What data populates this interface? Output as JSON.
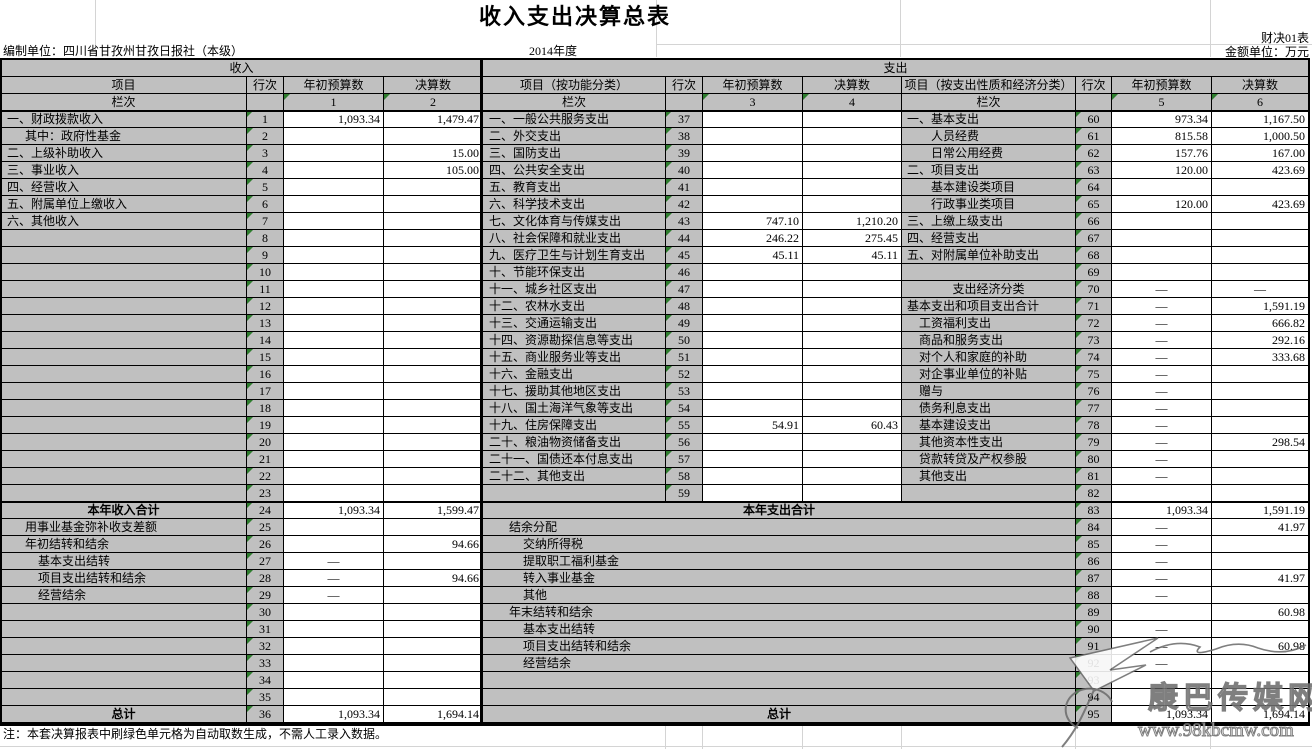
{
  "page": {
    "title": "收入支出决算总表",
    "form_code": "财决01表",
    "unit_note": "金额单位：万元",
    "prepared_by": "编制单位：四川省甘孜州甘孜日报社（本级）",
    "fiscal_year": "2014年度",
    "footnote": "注：本套决算报表中刷绿色单元格为自动取数生成，不需人工录入数据。"
  },
  "colors": {
    "header_bg": "#c0c0c0",
    "cell_bg": "#ffffff",
    "grid_line": "#000000",
    "autofill_triangle": "#2e7d2e"
  },
  "labels": {
    "income_band": "收入",
    "expense_band": "支出",
    "item": "项目",
    "row_no": "行次",
    "budget": "年初预算数",
    "final": "决算数",
    "lanci": "栏次",
    "func_item": "项目（按功能分类）",
    "econ_item": "项目（按支出性质和经济分类）"
  },
  "col_nums": {
    "income": [
      "1",
      "2"
    ],
    "func": [
      "3",
      "4"
    ],
    "econ": [
      "5",
      "6"
    ]
  },
  "income_rows": [
    {
      "n": "1",
      "l": "一、财政拨款收入",
      "i": 0,
      "b": "1,093.34",
      "f": "1,479.47"
    },
    {
      "n": "2",
      "l": "其中：政府性基金",
      "i": 1
    },
    {
      "n": "3",
      "l": "二、上级补助收入",
      "i": 0,
      "f": "15.00"
    },
    {
      "n": "4",
      "l": "三、事业收入",
      "i": 0,
      "f": "105.00"
    },
    {
      "n": "5",
      "l": "四、经营收入",
      "i": 0
    },
    {
      "n": "6",
      "l": "五、附属单位上缴收入",
      "i": 0
    },
    {
      "n": "7",
      "l": "六、其他收入",
      "i": 0
    },
    {
      "n": "8"
    },
    {
      "n": "9"
    },
    {
      "n": "10"
    },
    {
      "n": "11"
    },
    {
      "n": "12"
    },
    {
      "n": "13"
    },
    {
      "n": "14"
    },
    {
      "n": "15"
    },
    {
      "n": "16"
    },
    {
      "n": "17"
    },
    {
      "n": "18"
    },
    {
      "n": "19"
    },
    {
      "n": "20"
    },
    {
      "n": "21"
    },
    {
      "n": "22"
    },
    {
      "n": "23"
    },
    {
      "n": "24",
      "l": "本年收入合计",
      "s": "total",
      "b": "1,093.34",
      "f": "1,599.47"
    },
    {
      "n": "25",
      "l": "用事业基金弥补收支差额",
      "i": 1
    },
    {
      "n": "26",
      "l": "年初结转和结余",
      "i": 1,
      "f": "94.66"
    },
    {
      "n": "27",
      "l": "基本支出结转",
      "i": 2,
      "b": "—"
    },
    {
      "n": "28",
      "l": "项目支出结转和结余",
      "i": 2,
      "b": "—",
      "f": "94.66"
    },
    {
      "n": "29",
      "l": "经营结余",
      "i": 2,
      "b": "—"
    },
    {
      "n": "30"
    },
    {
      "n": "31"
    },
    {
      "n": "32"
    },
    {
      "n": "33"
    },
    {
      "n": "34"
    },
    {
      "n": "35"
    },
    {
      "n": "36",
      "l": "总计",
      "s": "total",
      "b": "1,093.34",
      "f": "1,694.14"
    }
  ],
  "func_rows": [
    {
      "n": "37",
      "l": "一、一般公共服务支出"
    },
    {
      "n": "38",
      "l": "二、外交支出"
    },
    {
      "n": "39",
      "l": "三、国防支出"
    },
    {
      "n": "40",
      "l": "四、公共安全支出"
    },
    {
      "n": "41",
      "l": "五、教育支出"
    },
    {
      "n": "42",
      "l": "六、科学技术支出"
    },
    {
      "n": "43",
      "l": "七、文化体育与传媒支出",
      "b": "747.10",
      "f": "1,210.20"
    },
    {
      "n": "44",
      "l": "八、社会保障和就业支出",
      "b": "246.22",
      "f": "275.45"
    },
    {
      "n": "45",
      "l": "九、医疗卫生与计划生育支出",
      "b": "45.11",
      "f": "45.11"
    },
    {
      "n": "46",
      "l": "十、节能环保支出"
    },
    {
      "n": "47",
      "l": "十一、城乡社区支出"
    },
    {
      "n": "48",
      "l": "十二、农林水支出"
    },
    {
      "n": "49",
      "l": "十三、交通运输支出"
    },
    {
      "n": "50",
      "l": "十四、资源勘探信息等支出"
    },
    {
      "n": "51",
      "l": "十五、商业服务业等支出"
    },
    {
      "n": "52",
      "l": "十六、金融支出"
    },
    {
      "n": "53",
      "l": "十七、援助其他地区支出"
    },
    {
      "n": "54",
      "l": "十八、国土海洋气象等支出"
    },
    {
      "n": "55",
      "l": "十九、住房保障支出",
      "b": "54.91",
      "f": "60.43"
    },
    {
      "n": "56",
      "l": "二十、粮油物资储备支出"
    },
    {
      "n": "57",
      "l": "二十一、国债还本付息支出"
    },
    {
      "n": "58",
      "l": "二十二、其他支出"
    },
    {
      "n": "59"
    }
  ],
  "bottom_rows": [
    {
      "l": "本年支出合计",
      "s": "total"
    },
    {
      "l": "结余分配",
      "i": 1
    },
    {
      "l": "交纳所得税",
      "i": 2
    },
    {
      "l": "提取职工福利基金",
      "i": 2
    },
    {
      "l": "转入事业基金",
      "i": 2
    },
    {
      "l": "其他",
      "i": 2
    },
    {
      "l": "年末结转和结余",
      "i": 1
    },
    {
      "l": "基本支出结转",
      "i": 2
    },
    {
      "l": "项目支出结转和结余",
      "i": 2
    },
    {
      "l": "经营结余",
      "i": 2
    },
    {
      "l": ""
    },
    {
      "l": ""
    },
    {
      "l": "总计",
      "s": "total"
    }
  ],
  "econ_rows": [
    {
      "n": "60",
      "l": "一、基本支出",
      "i": 0,
      "b": "973.34",
      "f": "1,167.50"
    },
    {
      "n": "61",
      "l": "人员经费",
      "i": 2,
      "b": "815.58",
      "f": "1,000.50"
    },
    {
      "n": "62",
      "l": "日常公用经费",
      "i": 2,
      "b": "157.76",
      "f": "167.00"
    },
    {
      "n": "63",
      "l": "二、项目支出",
      "i": 0,
      "b": "120.00",
      "f": "423.69"
    },
    {
      "n": "64",
      "l": "基本建设类项目",
      "i": 2
    },
    {
      "n": "65",
      "l": "行政事业类项目",
      "i": 2,
      "b": "120.00",
      "f": "423.69"
    },
    {
      "n": "66",
      "l": "三、上缴上级支出",
      "i": 0
    },
    {
      "n": "67",
      "l": "四、经营支出",
      "i": 0
    },
    {
      "n": "68",
      "l": "五、对附属单位补助支出",
      "i": 0
    },
    {
      "n": "69"
    },
    {
      "n": "70",
      "l": "支出经济分类",
      "s": "center",
      "b": "—",
      "f": "—"
    },
    {
      "n": "71",
      "l": "基本支出和项目支出合计",
      "i": 0,
      "b": "—",
      "f": "1,591.19"
    },
    {
      "n": "72",
      "l": "工资福利支出",
      "i": 1,
      "b": "—",
      "f": "666.82"
    },
    {
      "n": "73",
      "l": "商品和服务支出",
      "i": 1,
      "b": "—",
      "f": "292.16"
    },
    {
      "n": "74",
      "l": "对个人和家庭的补助",
      "i": 1,
      "b": "—",
      "f": "333.68"
    },
    {
      "n": "75",
      "l": "对企事业单位的补贴",
      "i": 1,
      "b": "—"
    },
    {
      "n": "76",
      "l": "赠与",
      "i": 1,
      "b": "—"
    },
    {
      "n": "77",
      "l": "债务利息支出",
      "i": 1,
      "b": "—"
    },
    {
      "n": "78",
      "l": "基本建设支出",
      "i": 1,
      "b": "—"
    },
    {
      "n": "79",
      "l": "其他资本性支出",
      "i": 1,
      "b": "—",
      "f": "298.54"
    },
    {
      "n": "80",
      "l": "贷款转贷及产权参股",
      "i": 1,
      "b": "—"
    },
    {
      "n": "81",
      "l": "其他支出",
      "i": 1,
      "b": "—"
    },
    {
      "n": "82"
    },
    {
      "n": "83",
      "m": 1,
      "b": "1,093.34",
      "f": "1,591.19"
    },
    {
      "n": "84",
      "m": 1,
      "b": "—",
      "f": "41.97"
    },
    {
      "n": "85",
      "m": 1,
      "b": "—"
    },
    {
      "n": "86",
      "m": 1,
      "b": "—"
    },
    {
      "n": "87",
      "m": 1,
      "b": "—",
      "f": "41.97"
    },
    {
      "n": "88",
      "m": 1,
      "b": "—"
    },
    {
      "n": "89",
      "m": 1,
      "f": "60.98"
    },
    {
      "n": "90",
      "m": 1,
      "b": "—"
    },
    {
      "n": "91",
      "m": 1,
      "b": "—",
      "f": "60.98"
    },
    {
      "n": "92",
      "m": 1,
      "b": "—"
    },
    {
      "n": "93",
      "m": 1
    },
    {
      "n": "94",
      "m": 1
    },
    {
      "n": "95",
      "m": 1,
      "b": "1,093.34",
      "f": "1,694.14"
    }
  ],
  "watermark": {
    "site_name": "康巴传媒网",
    "site_url": "www.98kbcmw.com"
  }
}
